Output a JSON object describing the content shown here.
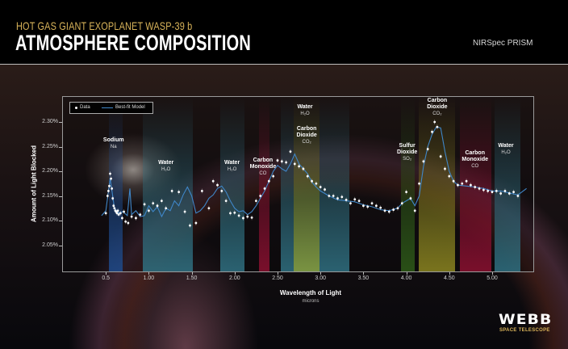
{
  "header": {
    "subtitle": "HOT GAS GIANT EXOPLANET WASP-39 b",
    "title": "ATMOSPHERE COMPOSITION",
    "instrument": "NIRSpec PRISM"
  },
  "logo": {
    "name": "WEBB",
    "tagline": "SPACE TELESCOPE"
  },
  "colors": {
    "subtitle_gold": "#d9b45a",
    "model_line": "#3f86c8",
    "frame": "#9a9a9a"
  },
  "chart_data": {
    "type": "scatter",
    "title": "Atmosphere Composition",
    "xlabel": "Wavelength of Light",
    "xunit": "microns",
    "ylabel": "Amount of Light Blocked",
    "xlim": [
      0.0,
      5.5
    ],
    "ylim": [
      2.0,
      2.335
    ],
    "x_ticks": [
      "0.5",
      "1.00",
      "1.50",
      "2.00",
      "2.50",
      "3.00",
      "3.50",
      "4.00",
      "4.50",
      "5.00"
    ],
    "y_ticks": [
      "2.30%",
      "2.25%",
      "2.20%",
      "2.15%",
      "2.10%",
      "2.05%"
    ],
    "legend": [
      {
        "label": "Data",
        "marker": "white dot"
      },
      {
        "label": "Best-fit Model",
        "marker": "blue line"
      }
    ],
    "legend_position": "top-left",
    "grid": false,
    "bands": [
      {
        "from": 0.53,
        "to": 0.69,
        "color": "#1e4a8a",
        "label": "Sodium",
        "formula": "Na"
      },
      {
        "from": 0.92,
        "to": 1.5,
        "color": "#2f6f80",
        "label": "Water",
        "formula": "H₂O"
      },
      {
        "from": 1.82,
        "to": 2.11,
        "color": "#2f6f80",
        "label": "Water",
        "formula": "H₂O"
      },
      {
        "from": 2.27,
        "to": 2.4,
        "color": "#8a1030",
        "label": "Carbon Monoxide",
        "formula": "CO"
      },
      {
        "from": 2.53,
        "to": 2.68,
        "color": "#2f6f80",
        "label": "",
        "formula": ""
      },
      {
        "from": 2.68,
        "to": 2.98,
        "color": "#8aa84a",
        "label": "Carbon Dioxide",
        "formula": "CO₂"
      },
      {
        "from": 2.98,
        "to": 3.33,
        "color": "#2f6f80",
        "label": "Water",
        "formula": "H₂O"
      },
      {
        "from": 3.93,
        "to": 4.09,
        "color": "#2e5a18",
        "label": "Sulfur Dioxide",
        "formula": "SO₂"
      },
      {
        "from": 4.14,
        "to": 4.56,
        "color": "#8a8420",
        "label": "Carbon Dioxide",
        "formula": "CO₂"
      },
      {
        "from": 4.61,
        "to": 4.98,
        "color": "#8a1030",
        "label": "Carbon Monoxide",
        "formula": "CO"
      },
      {
        "from": 5.02,
        "to": 5.32,
        "color": "#2f6f80",
        "label": "Water",
        "formula": "H₂O"
      }
    ],
    "series": [
      {
        "name": "Data",
        "x": [
          0.5,
          0.52,
          0.53,
          0.54,
          0.55,
          0.56,
          0.57,
          0.58,
          0.59,
          0.6,
          0.61,
          0.62,
          0.63,
          0.64,
          0.65,
          0.67,
          0.69,
          0.71,
          0.73,
          0.76,
          0.8,
          0.85,
          0.9,
          0.95,
          1.0,
          1.05,
          1.1,
          1.15,
          1.2,
          1.27,
          1.35,
          1.42,
          1.48,
          1.55,
          1.62,
          1.7,
          1.75,
          1.8,
          1.85,
          1.9,
          1.95,
          2.0,
          2.05,
          2.1,
          2.15,
          2.2,
          2.25,
          2.3,
          2.35,
          2.4,
          2.45,
          2.5,
          2.55,
          2.6,
          2.65,
          2.7,
          2.75,
          2.8,
          2.85,
          2.9,
          2.95,
          3.0,
          3.05,
          3.1,
          3.15,
          3.2,
          3.25,
          3.3,
          3.35,
          3.4,
          3.45,
          3.5,
          3.55,
          3.6,
          3.65,
          3.7,
          3.75,
          3.8,
          3.85,
          3.9,
          3.95,
          4.0,
          4.05,
          4.1,
          4.15,
          4.2,
          4.25,
          4.3,
          4.33,
          4.36,
          4.4,
          4.45,
          4.5,
          4.55,
          4.6,
          4.65,
          4.7,
          4.75,
          4.8,
          4.85,
          4.9,
          4.95,
          5.0,
          5.05,
          5.1,
          5.15,
          5.2,
          5.25,
          5.3
        ],
        "y": [
          2.115,
          2.15,
          2.16,
          2.17,
          2.195,
          2.185,
          2.165,
          2.145,
          2.13,
          2.125,
          2.12,
          2.118,
          2.115,
          2.12,
          2.112,
          2.115,
          2.105,
          2.118,
          2.098,
          2.095,
          2.108,
          2.105,
          2.112,
          2.133,
          2.12,
          2.135,
          2.13,
          2.14,
          2.125,
          2.16,
          2.158,
          2.118,
          2.09,
          2.095,
          2.16,
          2.125,
          2.18,
          2.172,
          2.16,
          2.14,
          2.115,
          2.116,
          2.11,
          2.105,
          2.108,
          2.106,
          2.14,
          2.15,
          2.165,
          2.18,
          2.19,
          2.222,
          2.22,
          2.218,
          2.24,
          2.215,
          2.21,
          2.205,
          2.19,
          2.18,
          2.175,
          2.168,
          2.163,
          2.15,
          2.15,
          2.145,
          2.148,
          2.142,
          2.135,
          2.143,
          2.14,
          2.13,
          2.128,
          2.135,
          2.13,
          2.126,
          2.12,
          2.118,
          2.122,
          2.125,
          2.135,
          2.158,
          2.145,
          2.12,
          2.175,
          2.22,
          2.245,
          2.28,
          2.3,
          2.29,
          2.23,
          2.205,
          2.19,
          2.18,
          2.172,
          2.175,
          2.18,
          2.172,
          2.168,
          2.165,
          2.162,
          2.16,
          2.158,
          2.16,
          2.155,
          2.16,
          2.155,
          2.158,
          2.15
        ]
      },
      {
        "name": "Best-fit Model",
        "x": [
          0.45,
          0.5,
          0.55,
          0.58,
          0.6,
          0.65,
          0.7,
          0.75,
          0.78,
          0.8,
          0.85,
          0.9,
          0.95,
          1.0,
          1.05,
          1.1,
          1.15,
          1.2,
          1.25,
          1.3,
          1.35,
          1.4,
          1.45,
          1.5,
          1.55,
          1.6,
          1.65,
          1.7,
          1.75,
          1.8,
          1.85,
          1.9,
          1.95,
          2.0,
          2.05,
          2.1,
          2.15,
          2.2,
          2.25,
          2.3,
          2.35,
          2.4,
          2.45,
          2.5,
          2.55,
          2.6,
          2.65,
          2.7,
          2.75,
          2.8,
          2.85,
          2.9,
          2.95,
          3.0,
          3.1,
          3.2,
          3.3,
          3.4,
          3.5,
          3.6,
          3.7,
          3.8,
          3.9,
          3.95,
          4.0,
          4.05,
          4.1,
          4.15,
          4.2,
          4.25,
          4.3,
          4.35,
          4.4,
          4.45,
          4.5,
          4.55,
          4.6,
          4.7,
          4.8,
          4.9,
          5.0,
          5.1,
          5.2,
          5.3,
          5.4
        ],
        "y": [
          2.11,
          2.12,
          2.185,
          2.15,
          2.125,
          2.115,
          2.118,
          2.11,
          2.165,
          2.112,
          2.12,
          2.108,
          2.11,
          2.13,
          2.118,
          2.128,
          2.108,
          2.125,
          2.12,
          2.14,
          2.13,
          2.152,
          2.168,
          2.15,
          2.115,
          2.12,
          2.13,
          2.145,
          2.152,
          2.165,
          2.17,
          2.158,
          2.14,
          2.125,
          2.118,
          2.12,
          2.112,
          2.118,
          2.13,
          2.145,
          2.16,
          2.18,
          2.2,
          2.212,
          2.205,
          2.2,
          2.215,
          2.235,
          2.215,
          2.205,
          2.195,
          2.178,
          2.168,
          2.16,
          2.15,
          2.142,
          2.14,
          2.138,
          2.132,
          2.128,
          2.122,
          2.12,
          2.125,
          2.135,
          2.14,
          2.145,
          2.13,
          2.15,
          2.21,
          2.25,
          2.275,
          2.29,
          2.288,
          2.24,
          2.2,
          2.18,
          2.172,
          2.17,
          2.168,
          2.165,
          2.16,
          2.16,
          2.156,
          2.152,
          2.165
        ]
      }
    ],
    "annotations": [
      {
        "label": "Sodium",
        "formula": "Na",
        "x": 0.59
      },
      {
        "label": "Water",
        "formula": "H₂O",
        "x": 1.2
      },
      {
        "label": "Water",
        "formula": "H₂O",
        "x": 1.97
      },
      {
        "label": "Carbon Monoxide",
        "formula": "CO",
        "x": 2.33
      },
      {
        "label": "Water",
        "formula": "H₂O",
        "x": 2.82
      },
      {
        "label": "Carbon Dioxide",
        "formula": "CO₂",
        "x": 2.83
      },
      {
        "label": "Sulfur Dioxide",
        "formula": "SO₂",
        "x": 4.01
      },
      {
        "label": "Carbon Dioxide",
        "formula": "CO₂",
        "x": 4.35
      },
      {
        "label": "Carbon Monoxide",
        "formula": "CO",
        "x": 4.79
      },
      {
        "label": "Water",
        "formula": "H₂O",
        "x": 5.17
      }
    ]
  },
  "labels": {
    "annotations": [
      {
        "name": "Sodium",
        "formula": "Na"
      },
      {
        "name": "Water",
        "formula": "H₂O"
      },
      {
        "name": "Water",
        "formula": "H₂O"
      },
      {
        "name1": "Carbon",
        "name2": "Monoxide",
        "formula": "CO"
      },
      {
        "name": "Water",
        "formula": "H₂O"
      },
      {
        "name1": "Carbon",
        "name2": "Dioxide",
        "formula": "CO₂"
      },
      {
        "name1": "Sulfur",
        "name2": "Dioxide",
        "formula": "SO₂"
      },
      {
        "name1": "Carbon",
        "name2": "Dioxide",
        "formula": "CO₂"
      },
      {
        "name1": "Carbon",
        "name2": "Monoxide",
        "formula": "CO"
      },
      {
        "name": "Water",
        "formula": "H₂O"
      }
    ]
  }
}
